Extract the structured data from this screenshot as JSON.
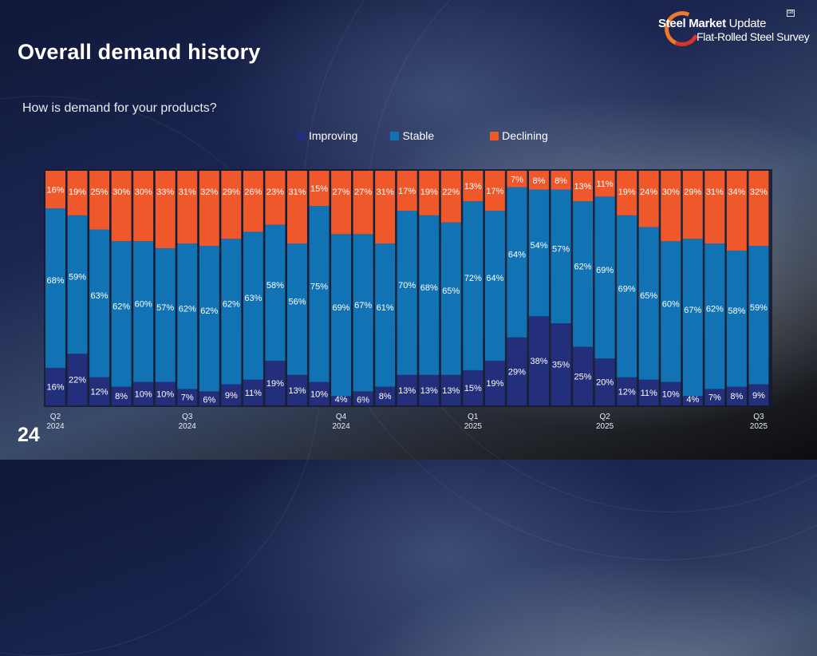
{
  "slide": {
    "title": "Overall demand history",
    "subtitle": "How is demand for your products?",
    "page_number": "24",
    "logo": {
      "line1_bold": "Steel Market",
      "line1_light": " Update",
      "line2": "Flat-Rolled Steel Survey",
      "badge": "GB"
    }
  },
  "legend": [
    {
      "label": "Improving",
      "color": "#232f7a"
    },
    {
      "label": "Stable",
      "color": "#1273b4"
    },
    {
      "label": "Declining",
      "color": "#ef582a"
    }
  ],
  "chart_data": {
    "type": "bar",
    "stacked": true,
    "percent_stacked": true,
    "title": "How is demand for your products?",
    "xlabel": "",
    "ylabel": "",
    "ylim": [
      0,
      100
    ],
    "legend_position": "top-center",
    "grid": false,
    "tick_labels": [
      {
        "index": 0,
        "line1": "Q2",
        "line2": "2024"
      },
      {
        "index": 6,
        "line1": "Q3",
        "line2": "2024"
      },
      {
        "index": 13,
        "line1": "Q4",
        "line2": "2024"
      },
      {
        "index": 19,
        "line1": "Q1",
        "line2": "2025"
      },
      {
        "index": 25,
        "line1": "Q2",
        "line2": "2025"
      },
      {
        "index": 32,
        "line1": "Q3",
        "line2": "2025"
      }
    ],
    "categories": [
      "1",
      "2",
      "3",
      "4",
      "5",
      "6",
      "7",
      "8",
      "9",
      "10",
      "11",
      "12",
      "13",
      "14",
      "15",
      "16",
      "17",
      "18",
      "19",
      "20",
      "21",
      "22",
      "23",
      "24",
      "25",
      "26",
      "27",
      "28",
      "29",
      "30",
      "31",
      "32",
      "33"
    ],
    "series": [
      {
        "name": "Improving",
        "color": "#232f7a",
        "values": [
          16,
          22,
          12,
          8,
          10,
          10,
          7,
          6,
          9,
          11,
          19,
          13,
          10,
          4,
          6,
          8,
          13,
          13,
          13,
          15,
          19,
          29,
          38,
          35,
          25,
          20,
          12,
          11,
          10,
          4,
          7,
          8,
          9
        ]
      },
      {
        "name": "Stable",
        "color": "#1273b4",
        "values": [
          68,
          59,
          63,
          62,
          60,
          57,
          62,
          62,
          62,
          63,
          58,
          56,
          75,
          69,
          67,
          61,
          70,
          68,
          65,
          72,
          64,
          64,
          54,
          57,
          62,
          69,
          69,
          65,
          60,
          67,
          62,
          58,
          59
        ]
      },
      {
        "name": "Declining",
        "color": "#ef582a",
        "values": [
          16,
          19,
          25,
          30,
          30,
          33,
          31,
          32,
          29,
          26,
          23,
          31,
          15,
          27,
          27,
          31,
          17,
          19,
          22,
          13,
          17,
          7,
          8,
          8,
          13,
          11,
          19,
          24,
          30,
          29,
          31,
          34,
          32
        ]
      }
    ]
  }
}
